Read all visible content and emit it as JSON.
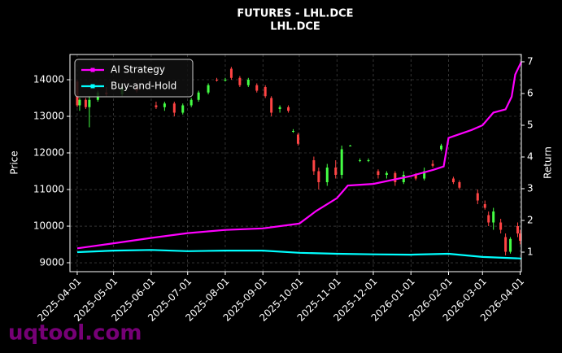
{
  "chart_data": {
    "type": "candlestick",
    "title": "FUTURES - LHL.DCE",
    "subtitle": "LHL.DCE",
    "ylabel": "Price",
    "y2label": "Return",
    "watermark": "uqtool.com",
    "up_color": "#44ff44",
    "down_color": "#ff4444",
    "grid": true,
    "legend": "upper left",
    "xlim": [
      "2025-03-26",
      "2026-04-02"
    ],
    "xticks": [
      "2025-04-01",
      "2025-05-01",
      "2025-06-01",
      "2025-07-01",
      "2025-08-01",
      "2025-09-01",
      "2025-10-01",
      "2025-11-01",
      "2025-12-01",
      "2026-01-01",
      "2026-02-01",
      "2026-03-01",
      "2026-04-01"
    ],
    "ylim": [
      8756,
      14689
    ],
    "yticks": [
      9000,
      10000,
      11000,
      12000,
      13000,
      14000
    ],
    "y2lim": [
      0.385,
      7.23
    ],
    "y2ticks": [
      1,
      2,
      3,
      4,
      5,
      6,
      7
    ],
    "x": [
      "2025-04-01",
      "2025-04-03",
      "2025-04-08",
      "2025-04-11",
      "2025-04-18",
      "2025-04-25",
      "2025-05-08",
      "2025-05-20",
      "2025-06-05",
      "2025-06-12",
      "2025-06-20",
      "2025-06-27",
      "2025-07-04",
      "2025-07-10",
      "2025-07-18",
      "2025-07-25",
      "2025-08-01",
      "2025-08-06",
      "2025-08-13",
      "2025-08-20",
      "2025-08-27",
      "2025-09-03",
      "2025-09-08",
      "2025-09-15",
      "2025-09-22",
      "2025-09-26",
      "2025-09-30",
      "2025-10-13",
      "2025-10-17",
      "2025-10-24",
      "2025-10-31",
      "2025-11-05",
      "2025-11-12",
      "2025-11-20",
      "2025-11-27",
      "2025-12-05",
      "2025-12-12",
      "2025-12-19",
      "2025-12-26",
      "2026-01-05",
      "2026-01-12",
      "2026-01-19",
      "2026-01-26",
      "2026-02-05",
      "2026-02-10",
      "2026-02-25",
      "2026-03-03",
      "2026-03-06",
      "2026-03-10",
      "2026-03-16",
      "2026-03-20",
      "2026-03-24",
      "2026-03-30",
      "2026-04-01"
    ],
    "open": [
      13950,
      13300,
      13450,
      13250,
      13450,
      13650,
      13600,
      13800,
      13300,
      13250,
      13350,
      13100,
      13300,
      13450,
      13650,
      14000,
      13980,
      14300,
      14050,
      13850,
      13850,
      13800,
      13500,
      13200,
      13250,
      12600,
      12500,
      11800,
      11500,
      11200,
      11600,
      11400,
      12200,
      11800,
      11800,
      11500,
      11400,
      11450,
      11200,
      11400,
      11300,
      11700,
      12100,
      11300,
      11200,
      10900,
      10600,
      10300,
      10100,
      10100,
      9700,
      9300,
      10000,
      9800
    ],
    "high": [
      14000,
      13500,
      13500,
      13550,
      13700,
      13800,
      13900,
      13900,
      13400,
      13400,
      13400,
      13350,
      13500,
      13700,
      13900,
      14050,
      14050,
      14350,
      14100,
      14050,
      13900,
      13850,
      13550,
      13300,
      13300,
      12650,
      12550,
      11900,
      11600,
      11700,
      11800,
      12200,
      12220,
      11850,
      11850,
      11550,
      11500,
      11500,
      11500,
      11450,
      11600,
      11800,
      12250,
      11350,
      11250,
      11000,
      10700,
      10400,
      10500,
      10200,
      9800,
      9700,
      10100,
      9900
    ],
    "low": [
      13250,
      13150,
      13200,
      12700,
      13400,
      13550,
      13550,
      13650,
      13200,
      13150,
      13000,
      13050,
      13250,
      13400,
      13600,
      13950,
      13950,
      14000,
      13800,
      13800,
      13650,
      13500,
      13000,
      13100,
      13100,
      12550,
      12200,
      11400,
      11000,
      11100,
      11300,
      11300,
      12180,
      11750,
      11750,
      11300,
      11300,
      11100,
      11150,
      11250,
      11250,
      11600,
      12050,
      11150,
      11000,
      10600,
      10450,
      10000,
      9900,
      9800,
      9200,
      9250,
      9700,
      9500
    ],
    "close": [
      13300,
      13450,
      13250,
      13450,
      13650,
      13600,
      13800,
      13700,
      13250,
      13350,
      13100,
      13300,
      13450,
      13650,
      13850,
      13980,
      14000,
      14050,
      13850,
      14000,
      13700,
      13550,
      13100,
      13250,
      13150,
      12600,
      12250,
      11500,
      11200,
      11600,
      11400,
      12100,
      12200,
      11800,
      11800,
      11400,
      11450,
      11200,
      11400,
      11300,
      11500,
      11650,
      12200,
      11200,
      11050,
      10700,
      10500,
      10100,
      10400,
      9900,
      9300,
      9650,
      9800,
      9600
    ],
    "series": [
      {
        "name": "AI Strategy",
        "color": "#ff00ff",
        "axis": "y2",
        "x": [
          "2025-04-01",
          "2025-05-01",
          "2025-06-01",
          "2025-07-01",
          "2025-08-01",
          "2025-09-01",
          "2025-10-01",
          "2025-10-15",
          "2025-11-01",
          "2025-11-10",
          "2025-12-01",
          "2026-01-01",
          "2026-01-20",
          "2026-01-28",
          "2026-02-01",
          "2026-02-20",
          "2026-03-01",
          "2026-03-10",
          "2026-03-20",
          "2026-03-25",
          "2026-03-28",
          "2026-04-02"
        ],
        "values": [
          1.12,
          1.28,
          1.45,
          1.6,
          1.7,
          1.75,
          1.9,
          2.3,
          2.7,
          3.1,
          3.15,
          3.4,
          3.6,
          3.7,
          4.6,
          4.85,
          5.0,
          5.4,
          5.5,
          5.9,
          6.6,
          7.0
        ]
      },
      {
        "name": "Buy-and-Hold",
        "color": "#00ffff",
        "axis": "y2",
        "x": [
          "2025-04-01",
          "2025-05-01",
          "2025-06-01",
          "2025-07-01",
          "2025-08-01",
          "2025-09-01",
          "2025-10-01",
          "2025-11-01",
          "2025-12-01",
          "2026-01-01",
          "2026-02-01",
          "2026-03-01",
          "2026-04-02"
        ],
        "values": [
          1.0,
          1.05,
          1.07,
          1.03,
          1.05,
          1.05,
          0.98,
          0.95,
          0.93,
          0.92,
          0.95,
          0.85,
          0.8
        ]
      }
    ]
  }
}
